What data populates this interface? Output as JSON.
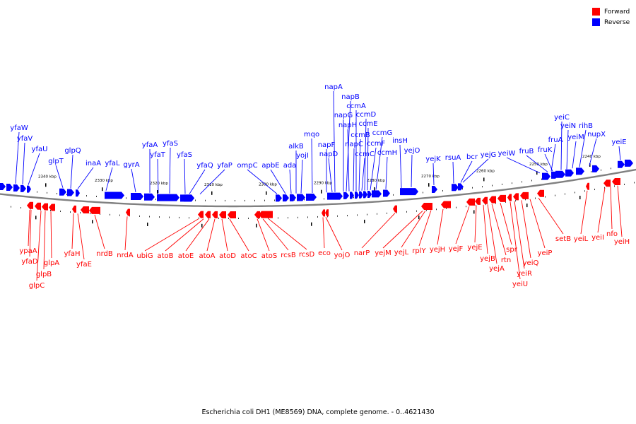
{
  "caption": "Escherichia coli DH1 (ME8569) DNA, complete genome. - 0..4621430",
  "legend": [
    {
      "label": "Forward",
      "color": "#ff0000"
    },
    {
      "label": "Reverse",
      "color": "#0000ff"
    }
  ],
  "colors": {
    "forward": "#ff0000",
    "reverse": "#0000ff",
    "backbone": "#808080"
  },
  "scale_ticks": [
    "2340 kbp",
    "2330 kbp",
    "2320 kbp",
    "2310 kbp",
    "2300 kbp",
    "2290 kbp",
    "2280 kbp",
    "2270 kbp",
    "2260 kbp",
    "2250 kbp",
    "2240 kbp"
  ],
  "reverse_genes": [
    {
      "label": "yfaW"
    },
    {
      "label": "yfaV"
    },
    {
      "label": "yfaU"
    },
    {
      "label": "glpT"
    },
    {
      "label": "glpQ"
    },
    {
      "label": "inaA"
    },
    {
      "label": "yfaL"
    },
    {
      "label": "gyrA"
    },
    {
      "label": "yfaA"
    },
    {
      "label": "yfaT"
    },
    {
      "label": "yfaS"
    },
    {
      "label": "yfaS"
    },
    {
      "label": "yfaQ"
    },
    {
      "label": "yfaP"
    },
    {
      "label": "ompC"
    },
    {
      "label": "apbE"
    },
    {
      "label": "ada"
    },
    {
      "label": "alkB"
    },
    {
      "label": "yojI"
    },
    {
      "label": "mqo"
    },
    {
      "label": "napF"
    },
    {
      "label": "napD"
    },
    {
      "label": "napA"
    },
    {
      "label": "napG"
    },
    {
      "label": "napB"
    },
    {
      "label": "napH"
    },
    {
      "label": "napC"
    },
    {
      "label": "ccmA"
    },
    {
      "label": "ccmB"
    },
    {
      "label": "ccmC"
    },
    {
      "label": "ccmD"
    },
    {
      "label": "ccmE"
    },
    {
      "label": "ccmF"
    },
    {
      "label": "ccmG"
    },
    {
      "label": "ccmH"
    },
    {
      "label": "insH"
    },
    {
      "label": "yejO"
    },
    {
      "label": "yejK"
    },
    {
      "label": "rsuA"
    },
    {
      "label": "bcr"
    },
    {
      "label": "yejG"
    },
    {
      "label": "yeiW"
    },
    {
      "label": "fruB"
    },
    {
      "label": "fruA"
    },
    {
      "label": "fruK"
    },
    {
      "label": "yeiC"
    },
    {
      "label": "yeiN"
    },
    {
      "label": "yeiM"
    },
    {
      "label": "rihB"
    },
    {
      "label": "nupX"
    },
    {
      "label": "yeiE"
    }
  ],
  "forward_genes": [
    {
      "label": "ypaA"
    },
    {
      "label": "yfaD"
    },
    {
      "label": "glpC"
    },
    {
      "label": "glpB"
    },
    {
      "label": "glpA"
    },
    {
      "label": "yfaH"
    },
    {
      "label": "yfaE"
    },
    {
      "label": "nrdB"
    },
    {
      "label": "nrdA"
    },
    {
      "label": "ubiG"
    },
    {
      "label": "atoB"
    },
    {
      "label": "atoE"
    },
    {
      "label": "atoA"
    },
    {
      "label": "atoD"
    },
    {
      "label": "atoC"
    },
    {
      "label": "atoS"
    },
    {
      "label": "rcsB"
    },
    {
      "label": "rcsD"
    },
    {
      "label": "eco"
    },
    {
      "label": "yojO"
    },
    {
      "label": "narP"
    },
    {
      "label": "yejM"
    },
    {
      "label": "yejL"
    },
    {
      "label": "rplY"
    },
    {
      "label": "yejH"
    },
    {
      "label": "yejF"
    },
    {
      "label": "yejE"
    },
    {
      "label": "yejB"
    },
    {
      "label": "yejA"
    },
    {
      "label": "rtn"
    },
    {
      "label": "spr"
    },
    {
      "label": "yeiU"
    },
    {
      "label": "yeiR"
    },
    {
      "label": "yeiQ"
    },
    {
      "label": "yeiP"
    },
    {
      "label": "setB"
    },
    {
      "label": "yeiL"
    },
    {
      "label": "yeiI"
    },
    {
      "label": "nfo"
    },
    {
      "label": "yeiH"
    }
  ]
}
